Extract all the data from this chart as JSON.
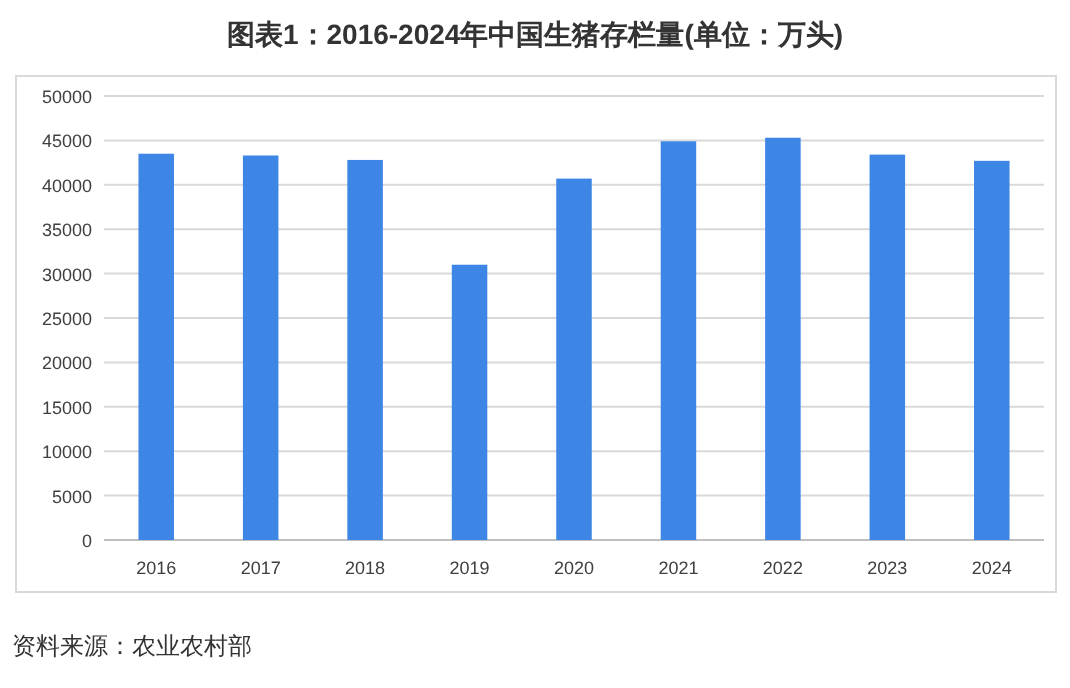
{
  "chart_data": {
    "type": "bar",
    "title": "图表1：2016-2024年中国生猪存栏量(单位：万头)",
    "categories": [
      "2016",
      "2017",
      "2018",
      "2019",
      "2020",
      "2021",
      "2022",
      "2023",
      "2024"
    ],
    "values": [
      43500,
      43300,
      42800,
      31000,
      40700,
      44900,
      45300,
      43400,
      42700
    ],
    "color": "#3d86e6",
    "ylim": [
      0,
      50000
    ],
    "yticks": [
      0,
      5000,
      10000,
      15000,
      20000,
      25000,
      30000,
      35000,
      40000,
      45000,
      50000
    ],
    "grid": "y",
    "annotations": [
      "资料来源：农业农村部"
    ]
  }
}
